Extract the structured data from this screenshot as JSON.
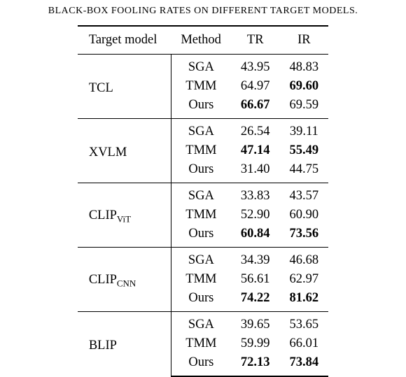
{
  "caption": "BLACK-BOX FOOLING RATES ON DIFFERENT TARGET MODELS.",
  "table": {
    "headers": [
      "Target model",
      "Method",
      "TR",
      "IR"
    ],
    "groups": [
      {
        "model": "TCL",
        "model_html": "TCL",
        "rows": [
          {
            "method": "SGA",
            "tr": "43.95",
            "tr_bold": false,
            "ir": "48.83",
            "ir_bold": false
          },
          {
            "method": "TMM",
            "tr": "64.97",
            "tr_bold": false,
            "ir": "69.60",
            "ir_bold": true
          },
          {
            "method": "Ours",
            "tr": "66.67",
            "tr_bold": true,
            "ir": "69.59",
            "ir_bold": false
          }
        ]
      },
      {
        "model": "XVLM",
        "model_html": "XVLM",
        "rows": [
          {
            "method": "SGA",
            "tr": "26.54",
            "tr_bold": false,
            "ir": "39.11",
            "ir_bold": false
          },
          {
            "method": "TMM",
            "tr": "47.14",
            "tr_bold": true,
            "ir": "55.49",
            "ir_bold": true
          },
          {
            "method": "Ours",
            "tr": "31.40",
            "tr_bold": false,
            "ir": "44.75",
            "ir_bold": false
          }
        ]
      },
      {
        "model": "CLIP_ViT",
        "model_html": "CLIP<sub>ViT</sub>",
        "rows": [
          {
            "method": "SGA",
            "tr": "33.83",
            "tr_bold": false,
            "ir": "43.57",
            "ir_bold": false
          },
          {
            "method": "TMM",
            "tr": "52.90",
            "tr_bold": false,
            "ir": "60.90",
            "ir_bold": false
          },
          {
            "method": "Ours",
            "tr": "60.84",
            "tr_bold": true,
            "ir": "73.56",
            "ir_bold": true
          }
        ]
      },
      {
        "model": "CLIP_CNN",
        "model_html": "CLIP<sub>CNN</sub>",
        "rows": [
          {
            "method": "SGA",
            "tr": "34.39",
            "tr_bold": false,
            "ir": "46.68",
            "ir_bold": false
          },
          {
            "method": "TMM",
            "tr": "56.61",
            "tr_bold": false,
            "ir": "62.97",
            "ir_bold": false
          },
          {
            "method": "Ours",
            "tr": "74.22",
            "tr_bold": true,
            "ir": "81.62",
            "ir_bold": true
          }
        ]
      },
      {
        "model": "BLIP",
        "model_html": "BLIP",
        "rows": [
          {
            "method": "SGA",
            "tr": "39.65",
            "tr_bold": false,
            "ir": "53.65",
            "ir_bold": false
          },
          {
            "method": "TMM",
            "tr": "59.99",
            "tr_bold": false,
            "ir": "66.01",
            "ir_bold": false
          },
          {
            "method": "Ours",
            "tr": "72.13",
            "tr_bold": true,
            "ir": "73.84",
            "ir_bold": true
          }
        ]
      }
    ]
  },
  "colors": {
    "text": "#000000",
    "background": "#ffffff",
    "rule": "#000000"
  }
}
